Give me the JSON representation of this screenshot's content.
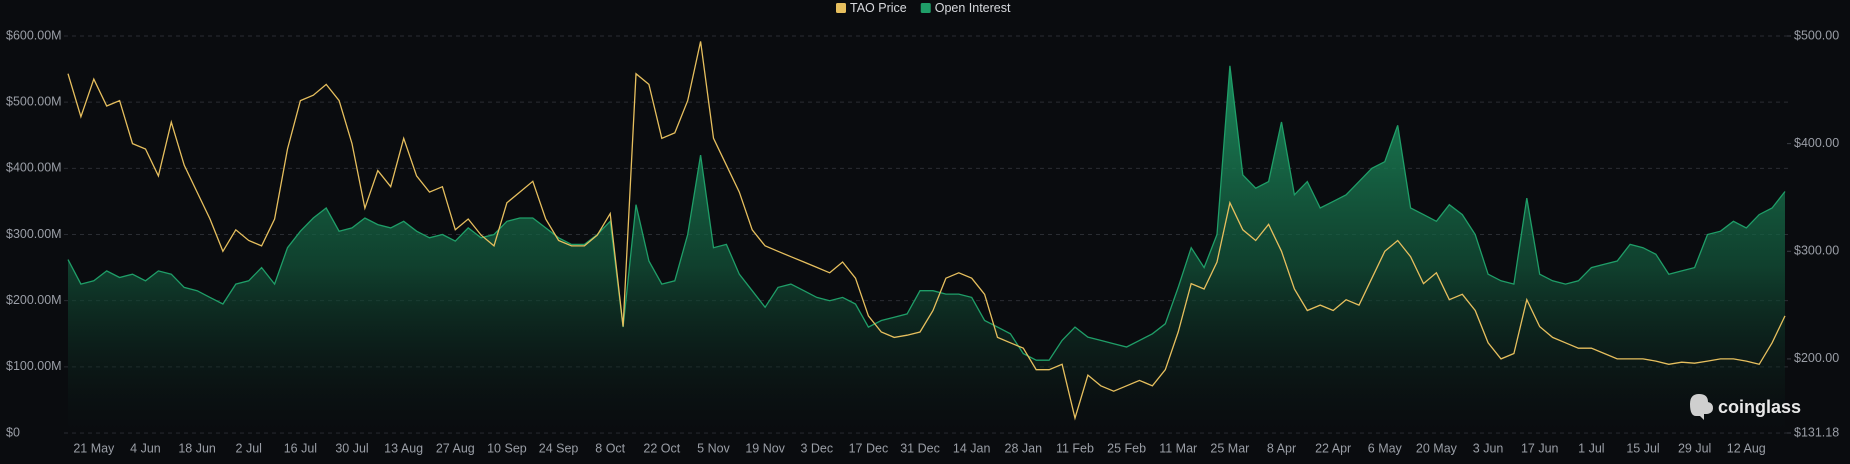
{
  "chart_data": {
    "type": "line",
    "legend_position": "top",
    "grid": true,
    "watermark": "coinglass",
    "categories": [
      null,
      null,
      "21 May",
      null,
      null,
      null,
      "4 Jun",
      null,
      null,
      null,
      "18 Jun",
      null,
      null,
      null,
      "2 Jul",
      null,
      null,
      null,
      "16 Jul",
      null,
      null,
      null,
      "30 Jul",
      null,
      null,
      null,
      "13 Aug",
      null,
      null,
      null,
      "27 Aug",
      null,
      null,
      null,
      "10 Sep",
      null,
      null,
      null,
      "24 Sep",
      null,
      null,
      null,
      "8 Oct",
      null,
      null,
      null,
      "22 Oct",
      null,
      null,
      null,
      "5 Nov",
      null,
      null,
      null,
      "19 Nov",
      null,
      null,
      null,
      "3 Dec",
      null,
      null,
      null,
      "17 Dec",
      null,
      null,
      null,
      "31 Dec",
      null,
      null,
      null,
      "14 Jan",
      null,
      null,
      null,
      "28 Jan",
      null,
      null,
      null,
      "11 Feb",
      null,
      null,
      null,
      "25 Feb",
      null,
      null,
      null,
      "11 Mar",
      null,
      null,
      null,
      "25 Mar",
      null,
      null,
      null,
      "8 Apr",
      null,
      null,
      null,
      "22 Apr",
      null,
      null,
      null,
      "6 May",
      null,
      null,
      null,
      "20 May",
      null,
      null,
      null,
      "3 Jun",
      null,
      null,
      null,
      "17 Jun",
      null,
      null,
      null,
      "1 Jul",
      null,
      null,
      null,
      "15 Jul",
      null,
      null,
      null,
      "29 Jul",
      null,
      null,
      null,
      "12 Aug",
      null,
      null,
      null
    ],
    "ylim": [
      0,
      600
    ],
    "yticks": [
      {
        "value": 0,
        "label": "$0"
      },
      {
        "value": 100,
        "label": "$100.00M"
      },
      {
        "value": 200,
        "label": "$200.00M"
      },
      {
        "value": 300,
        "label": "$300.00M"
      },
      {
        "value": 400,
        "label": "$400.00M"
      },
      {
        "value": 500,
        "label": "$500.00M"
      },
      {
        "value": 600,
        "label": "$600.00M"
      }
    ],
    "y2lim": [
      131.18,
      500
    ],
    "y2ticks": [
      {
        "value": 131.18,
        "label": "$131.18"
      },
      {
        "value": 200,
        "label": "$200.00"
      },
      {
        "value": 300,
        "label": "$300.00"
      },
      {
        "value": 400,
        "label": "$400.00"
      },
      {
        "value": 500,
        "label": "$500.00"
      }
    ],
    "series": [
      {
        "name": "TAO Price",
        "color": "#e6bf5e",
        "type": "line",
        "axis": "y2",
        "values": [
          465,
          425,
          460,
          435,
          440,
          400,
          395,
          370,
          420,
          380,
          355,
          330,
          300,
          320,
          310,
          305,
          330,
          395,
          440,
          445,
          455,
          440,
          400,
          340,
          375,
          360,
          405,
          370,
          355,
          360,
          320,
          330,
          315,
          305,
          345,
          355,
          365,
          330,
          310,
          305,
          305,
          315,
          335,
          230,
          465,
          455,
          405,
          410,
          440,
          495,
          405,
          380,
          355,
          320,
          305,
          300,
          295,
          290,
          285,
          280,
          290,
          275,
          240,
          225,
          220,
          222,
          225,
          245,
          275,
          280,
          275,
          260,
          220,
          215,
          210,
          190,
          190,
          195,
          145,
          185,
          175,
          170,
          175,
          180,
          175,
          190,
          225,
          270,
          265,
          290,
          345,
          320,
          310,
          325,
          300,
          265,
          245,
          250,
          245,
          255,
          250,
          275,
          300,
          310,
          295,
          270,
          280,
          255,
          260,
          245,
          215,
          200,
          205,
          255,
          230,
          220,
          215,
          210,
          210,
          205,
          200,
          200,
          200,
          198,
          195,
          197,
          196,
          198,
          200,
          200,
          198,
          195,
          215,
          240
        ]
      },
      {
        "name": "Open Interest",
        "color": "#1f9e68",
        "type": "area",
        "values": [
          262,
          225,
          230,
          245,
          235,
          240,
          230,
          245,
          240,
          220,
          215,
          205,
          195,
          225,
          230,
          250,
          225,
          280,
          305,
          325,
          340,
          305,
          310,
          325,
          315,
          310,
          320,
          305,
          295,
          300,
          290,
          310,
          295,
          300,
          320,
          325,
          325,
          310,
          295,
          285,
          285,
          300,
          320,
          160,
          345,
          260,
          225,
          230,
          300,
          420,
          280,
          285,
          240,
          215,
          190,
          220,
          225,
          215,
          205,
          200,
          205,
          195,
          160,
          170,
          175,
          180,
          215,
          215,
          210,
          210,
          205,
          170,
          160,
          150,
          120,
          110,
          110,
          140,
          160,
          145,
          140,
          135,
          130,
          140,
          150,
          165,
          220,
          280,
          250,
          300,
          555,
          390,
          370,
          380,
          470,
          360,
          380,
          340,
          350,
          360,
          380,
          400,
          410,
          465,
          340,
          330,
          320,
          345,
          330,
          300,
          240,
          230,
          225,
          355,
          240,
          230,
          225,
          230,
          250,
          255,
          260,
          285,
          280,
          270,
          240,
          245,
          250,
          300,
          305,
          320,
          310,
          330,
          340,
          365
        ]
      }
    ]
  }
}
